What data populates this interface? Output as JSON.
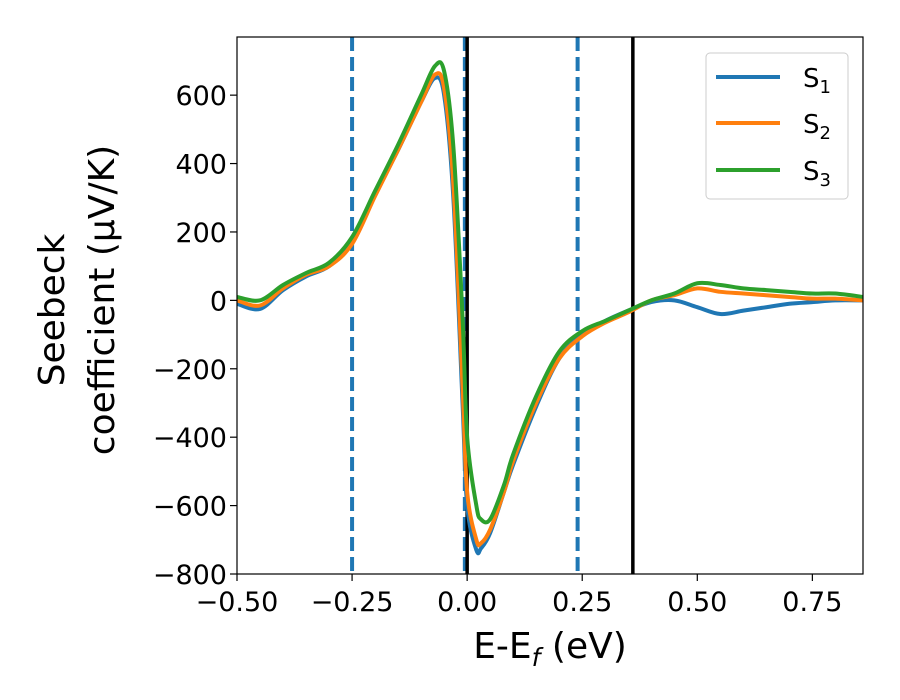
{
  "chart_data": {
    "type": "line",
    "xlabel": {
      "main": "E-E",
      "sub": "f",
      "unit": " (eV)"
    },
    "ylabel": {
      "line1": "Seebeck",
      "line2": "coefficient  (μV/K)"
    },
    "xlim": [
      -0.5,
      0.86
    ],
    "ylim": [
      -800,
      770
    ],
    "xticks": [
      -0.5,
      -0.25,
      0.0,
      0.25,
      0.5,
      0.75
    ],
    "xtick_labels": [
      "−0.50",
      "−0.25",
      "0.00",
      "0.25",
      "0.50",
      "0.75"
    ],
    "yticks": [
      -800,
      -600,
      -400,
      -200,
      0,
      200,
      400,
      600
    ],
    "ytick_labels": [
      "−800",
      "−600",
      "−400",
      "−200",
      "0",
      "200",
      "400",
      "600"
    ],
    "legend_position": "top-right",
    "series": [
      {
        "name": "S",
        "sub": "1",
        "color": "#1f77b4",
        "x": [
          -0.5,
          -0.45,
          -0.4,
          -0.35,
          -0.3,
          -0.25,
          -0.2,
          -0.15,
          -0.1,
          -0.07,
          -0.05,
          -0.03,
          -0.01,
          0.0,
          0.02,
          0.03,
          0.05,
          0.08,
          0.1,
          0.15,
          0.2,
          0.25,
          0.3,
          0.35,
          0.4,
          0.45,
          0.5,
          0.55,
          0.6,
          0.65,
          0.7,
          0.75,
          0.8,
          0.86
        ],
        "y": [
          -10,
          -25,
          30,
          70,
          100,
          170,
          310,
          440,
          580,
          650,
          600,
          300,
          -300,
          -600,
          -730,
          -725,
          -680,
          -560,
          -480,
          -310,
          -170,
          -100,
          -60,
          -30,
          -5,
          0,
          -20,
          -40,
          -30,
          -20,
          -10,
          -5,
          0,
          0
        ]
      },
      {
        "name": "S",
        "sub": "2",
        "color": "#ff7f0e",
        "x": [
          -0.5,
          -0.45,
          -0.4,
          -0.35,
          -0.3,
          -0.25,
          -0.2,
          -0.15,
          -0.1,
          -0.07,
          -0.05,
          -0.03,
          -0.01,
          0.0,
          0.02,
          0.03,
          0.05,
          0.08,
          0.1,
          0.15,
          0.2,
          0.25,
          0.3,
          0.35,
          0.4,
          0.45,
          0.5,
          0.55,
          0.6,
          0.65,
          0.7,
          0.75,
          0.8,
          0.86
        ],
        "y": [
          0,
          -15,
          35,
          75,
          100,
          165,
          305,
          440,
          580,
          660,
          620,
          340,
          -250,
          -560,
          -700,
          -710,
          -670,
          -560,
          -470,
          -300,
          -170,
          -105,
          -65,
          -35,
          0,
          15,
          35,
          25,
          20,
          15,
          10,
          5,
          5,
          0
        ]
      },
      {
        "name": "S",
        "sub": "3",
        "color": "#2ca02c",
        "x": [
          -0.5,
          -0.45,
          -0.4,
          -0.35,
          -0.3,
          -0.25,
          -0.2,
          -0.15,
          -0.1,
          -0.07,
          -0.05,
          -0.03,
          -0.01,
          0.0,
          0.02,
          0.03,
          0.05,
          0.08,
          0.1,
          0.15,
          0.2,
          0.25,
          0.3,
          0.35,
          0.4,
          0.45,
          0.5,
          0.55,
          0.6,
          0.65,
          0.7,
          0.75,
          0.8,
          0.86
        ],
        "y": [
          10,
          0,
          45,
          80,
          110,
          185,
          320,
          455,
          600,
          685,
          670,
          450,
          -50,
          -400,
          -600,
          -640,
          -640,
          -540,
          -450,
          -280,
          -150,
          -90,
          -60,
          -30,
          0,
          20,
          50,
          45,
          35,
          30,
          25,
          20,
          20,
          10
        ]
      }
    ],
    "vlines": [
      {
        "x": -0.25,
        "style": "dashed",
        "color": "#1f77b4"
      },
      {
        "x": -0.005,
        "style": "dashed",
        "color": "#1f77b4"
      },
      {
        "x": 0.24,
        "style": "dashed",
        "color": "#1f77b4"
      },
      {
        "x": 0.0,
        "style": "solid",
        "color": "#000000"
      },
      {
        "x": 0.36,
        "style": "solid",
        "color": "#000000"
      }
    ]
  }
}
